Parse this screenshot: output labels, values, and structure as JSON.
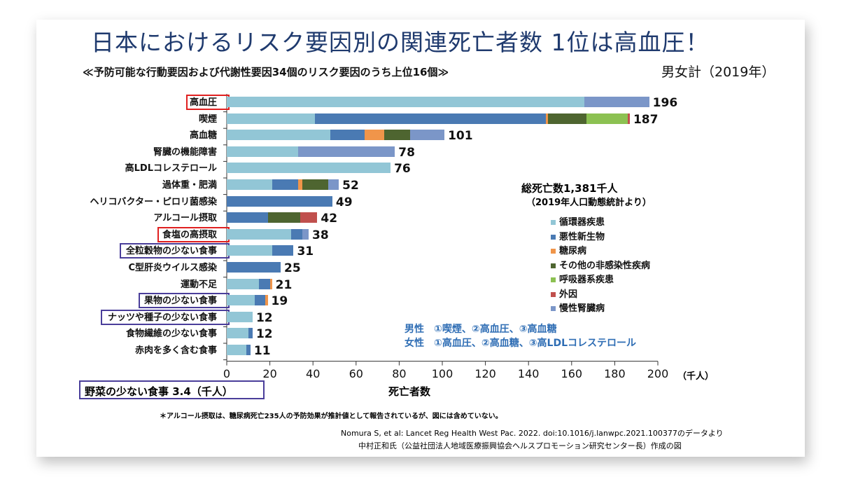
{
  "title": "日本におけるリスク要因別の関連死亡者数 1位は高血圧！",
  "subtitle": "≪予防可能な行動要因および代謝性要因34個のリスク要因のうち上位16個≫",
  "scope": "男女計（2019年）",
  "chart_data": {
    "type": "bar",
    "orientation": "horizontal",
    "stacked": true,
    "xlabel": "死亡者数",
    "xunit": "（千人）",
    "xlim": [
      0,
      200
    ],
    "xticks": [
      "0",
      "20",
      "40",
      "60",
      "80",
      "100",
      "120",
      "140",
      "160",
      "180",
      "200"
    ],
    "grid": false,
    "legend_placement": "right",
    "categories": [
      "高血圧",
      "喫煙",
      "高血糖",
      "腎臓の機能障害",
      "高LDLコレステロール",
      "過体重・肥満",
      "ヘリコバクター・ピロリ菌感染",
      "アルコール摂取",
      "食塩の高摂取",
      "全粒穀物の少ない食事",
      "C型肝炎ウイルス感染",
      "運動不足",
      "果物の少ない食事",
      "ナッツや種子の少ない食事",
      "食物繊維の少ない食事",
      "赤肉を多く含む食事"
    ],
    "totals": [
      "196",
      "187",
      "101",
      "78",
      "76",
      "52",
      "49",
      "42",
      "38",
      "31",
      "25",
      "21",
      "19",
      "12",
      "12",
      "11"
    ],
    "highlight": [
      "red",
      "",
      "",
      "",
      "",
      "",
      "",
      "",
      "red",
      "purple",
      "",
      "",
      "purple",
      "purple",
      "",
      ""
    ],
    "series": [
      {
        "name": "循環器疾患",
        "color": "#92c6d6",
        "values": [
          166,
          41,
          48,
          33,
          76,
          21,
          0,
          0,
          30,
          21,
          0,
          15,
          13,
          12,
          10,
          9
        ]
      },
      {
        "name": "悪性新生物",
        "color": "#4a7ab3",
        "values": [
          0,
          107,
          16,
          0,
          0,
          12,
          49,
          19,
          5,
          10,
          25,
          5,
          5,
          0,
          2,
          2
        ]
      },
      {
        "name": "糖尿病",
        "color": "#f0954a",
        "values": [
          0,
          1,
          9,
          0,
          0,
          2,
          0,
          0,
          0,
          0,
          0,
          1,
          1,
          0,
          0,
          0
        ]
      },
      {
        "name": "その他の非感染性疾病",
        "color": "#4e6530",
        "values": [
          0,
          18,
          12,
          0,
          0,
          12,
          0,
          15,
          0,
          0,
          0,
          0,
          0,
          0,
          0,
          0
        ]
      },
      {
        "name": "呼吸器系疾患",
        "color": "#8cc152",
        "values": [
          0,
          19,
          0,
          0,
          0,
          0,
          0,
          0,
          0,
          0,
          0,
          0,
          0,
          0,
          0,
          0
        ]
      },
      {
        "name": "外因",
        "color": "#c0504d",
        "values": [
          0,
          1,
          0,
          0,
          0,
          0,
          0,
          8,
          0,
          0,
          0,
          0,
          0,
          0,
          0,
          0
        ]
      },
      {
        "name": "慢性腎臓病",
        "color": "#7b96c8",
        "values": [
          30,
          0,
          16,
          45,
          0,
          5,
          0,
          0,
          3,
          0,
          0,
          0,
          0,
          0,
          0,
          0
        ]
      }
    ]
  },
  "total_deaths": "総死亡数1,381千人",
  "total_source": "（2019年人口動態統計より）",
  "rankings": [
    "男性　①喫煙、②高血圧、③高血糖",
    "女性　①高血圧、②高血糖、③高LDLコレステロール"
  ],
  "extra_item": "野菜の少ない食事 3.4（千人）",
  "footnote": "＊アルコール摂取は、糖尿病死亡235人の予防効果が推計値として報告されているが、図には含めていない。",
  "citation": [
    "Nomura S, et al: Lancet Reg Health West Pac. 2022. doi:10.1016/j.lanwpc.2021.100377のデータより",
    "中村正和氏（公益社団法人地域医療振興協会ヘルスプロモーション研究センター長）作成の図"
  ]
}
